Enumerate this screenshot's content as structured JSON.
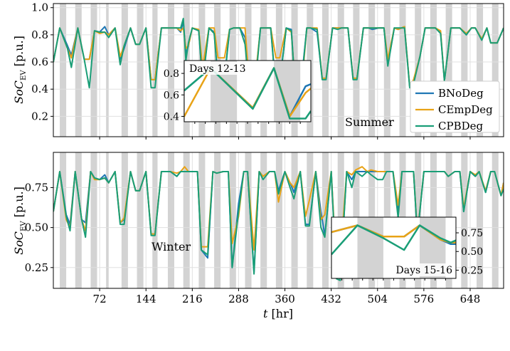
{
  "chart_data": [
    {
      "type": "line",
      "panel": "top",
      "annotation": "Summer",
      "ylabel": "SoC_EV [p.u.]",
      "ylabel_main": "SoC",
      "ylabel_sub": "EV",
      "ylabel_unit": " [p.u.]",
      "xlim": [
        0,
        700
      ],
      "ylim": [
        0.05,
        1.03
      ],
      "yticks": [
        0.2,
        0.4,
        0.6,
        0.8,
        1.0
      ],
      "ytick_labels": [
        "0.2",
        "0.4",
        "0.6",
        "0.8",
        "1.0"
      ],
      "grid": true,
      "legend_position": "lower-right",
      "series": [
        {
          "name": "BNoDeg",
          "color": "#1f77b4"
        },
        {
          "name": "CEmpDeg",
          "color": "#e8a317"
        },
        {
          "name": "CPBDeg",
          "color": "#1a9e77"
        }
      ],
      "profile": {
        "x": [
          0,
          10,
          22,
          28,
          38,
          48,
          56,
          64,
          72,
          80,
          86,
          96,
          104,
          110,
          120,
          128,
          134,
          144,
          152,
          158,
          168,
          176,
          182,
          192,
          198,
          202,
          206,
          210,
          216,
          226,
          232,
          242,
          250,
          256,
          266,
          274,
          280,
          290,
          298,
          304,
          314,
          322,
          328,
          338,
          346,
          352,
          362,
          370,
          376,
          386,
          394,
          400,
          410,
          418,
          424,
          434,
          442,
          448,
          458,
          466,
          472,
          482,
          490,
          496,
          506,
          514,
          520,
          530,
          536,
          546,
          554,
          560,
          570,
          578,
          584,
          594,
          602,
          608,
          618,
          626,
          632,
          642,
          650,
          656,
          666,
          674,
          680,
          690,
          700
        ],
        "BNoDeg": [
          0.6,
          0.85,
          0.72,
          0.65,
          0.85,
          0.62,
          0.62,
          0.83,
          0.82,
          0.86,
          0.8,
          0.85,
          0.62,
          0.7,
          0.85,
          0.73,
          0.73,
          0.85,
          0.47,
          0.47,
          0.85,
          0.85,
          0.85,
          0.85,
          0.82,
          0.9,
          0.66,
          0.72,
          0.85,
          0.83,
          0.46,
          0.85,
          0.82,
          0.47,
          0.48,
          0.84,
          0.85,
          0.85,
          0.78,
          0.45,
          0.46,
          0.85,
          0.85,
          0.85,
          0.4,
          0.45,
          0.85,
          0.84,
          0.4,
          0.48,
          0.85,
          0.85,
          0.82,
          0.48,
          0.48,
          0.85,
          0.85,
          0.85,
          0.85,
          0.48,
          0.48,
          0.85,
          0.85,
          0.84,
          0.85,
          0.85,
          0.58,
          0.85,
          0.84,
          0.86,
          0.42,
          0.45,
          0.64,
          0.85,
          0.85,
          0.85,
          0.82,
          0.46,
          0.85,
          0.85,
          0.85,
          0.8,
          0.85,
          0.85,
          0.77,
          0.85,
          0.74,
          0.74,
          0.85
        ],
        "CEmpDeg": [
          0.6,
          0.85,
          0.7,
          0.63,
          0.85,
          0.62,
          0.62,
          0.83,
          0.81,
          0.82,
          0.8,
          0.85,
          0.64,
          0.72,
          0.85,
          0.73,
          0.73,
          0.85,
          0.47,
          0.47,
          0.85,
          0.85,
          0.85,
          0.85,
          0.83,
          0.85,
          0.7,
          0.72,
          0.85,
          0.84,
          0.56,
          0.85,
          0.85,
          0.63,
          0.63,
          0.84,
          0.85,
          0.85,
          0.85,
          0.48,
          0.48,
          0.85,
          0.85,
          0.85,
          0.63,
          0.63,
          0.85,
          0.82,
          0.42,
          0.42,
          0.85,
          0.85,
          0.85,
          0.48,
          0.48,
          0.85,
          0.85,
          0.85,
          0.85,
          0.48,
          0.48,
          0.85,
          0.85,
          0.85,
          0.85,
          0.85,
          0.62,
          0.85,
          0.84,
          0.86,
          0.42,
          0.47,
          0.64,
          0.85,
          0.85,
          0.85,
          0.83,
          0.46,
          0.85,
          0.85,
          0.85,
          0.81,
          0.85,
          0.85,
          0.77,
          0.85,
          0.74,
          0.74,
          0.85
        ],
        "CPBDeg": [
          0.6,
          0.85,
          0.7,
          0.56,
          0.85,
          0.62,
          0.41,
          0.83,
          0.82,
          0.82,
          0.78,
          0.85,
          0.58,
          0.72,
          0.85,
          0.73,
          0.73,
          0.85,
          0.41,
          0.41,
          0.85,
          0.85,
          0.85,
          0.85,
          0.85,
          0.92,
          0.61,
          0.74,
          0.85,
          0.83,
          0.44,
          0.85,
          0.81,
          0.46,
          0.46,
          0.84,
          0.85,
          0.85,
          0.73,
          0.43,
          0.43,
          0.85,
          0.85,
          0.85,
          0.38,
          0.44,
          0.85,
          0.83,
          0.39,
          0.46,
          0.85,
          0.85,
          0.84,
          0.47,
          0.47,
          0.85,
          0.84,
          0.85,
          0.85,
          0.47,
          0.47,
          0.85,
          0.85,
          0.85,
          0.85,
          0.85,
          0.57,
          0.85,
          0.85,
          0.85,
          0.41,
          0.44,
          0.64,
          0.85,
          0.85,
          0.85,
          0.81,
          0.46,
          0.85,
          0.85,
          0.85,
          0.8,
          0.85,
          0.85,
          0.76,
          0.85,
          0.74,
          0.74,
          0.85
        ]
      },
      "night_bands": [
        [
          10,
          20
        ],
        [
          34,
          44
        ],
        [
          58,
          68
        ],
        [
          82,
          86
        ],
        [
          106,
          116
        ],
        [
          130,
          140
        ],
        [
          154,
          162
        ],
        [
          178,
          188
        ],
        [
          202,
          212
        ],
        [
          226,
          236
        ],
        [
          250,
          260
        ],
        [
          274,
          284
        ],
        [
          298,
          308
        ],
        [
          322,
          332
        ],
        [
          346,
          356
        ],
        [
          370,
          380
        ],
        [
          394,
          404
        ],
        [
          418,
          428
        ],
        [
          442,
          452
        ],
        [
          466,
          476
        ],
        [
          490,
          500
        ],
        [
          514,
          524
        ],
        [
          538,
          548
        ],
        [
          562,
          572
        ],
        [
          586,
          596
        ],
        [
          610,
          620
        ],
        [
          634,
          644
        ],
        [
          658,
          668
        ],
        [
          682,
          692
        ]
      ]
    },
    {
      "type": "line",
      "panel": "top-inset",
      "title": "Days 12-13",
      "xlim": [
        264,
        312
      ],
      "ylim": [
        0.35,
        0.92
      ],
      "yticks": [
        0.4,
        0.6,
        0.8
      ],
      "ytick_labels": [
        "0.4",
        "0.6",
        "0.8"
      ],
      "profile": {
        "x": [
          264,
          274,
          290,
          298,
          304,
          310,
          312
        ],
        "BNoDeg": [
          0.64,
          0.85,
          0.48,
          0.85,
          0.4,
          0.68,
          0.7
        ],
        "CEmpDeg": [
          0.4,
          0.85,
          0.48,
          0.85,
          0.4,
          0.62,
          0.66
        ],
        "CPBDeg": [
          0.64,
          0.85,
          0.47,
          0.85,
          0.38,
          0.38,
          0.45
        ]
      },
      "night_bands": [
        [
          274,
          284
        ],
        [
          298,
          308
        ]
      ]
    },
    {
      "type": "line",
      "panel": "bottom",
      "annotation": "Winter",
      "xlabel": "t [hr]",
      "xlabel_main": "t",
      "xlabel_unit": " [hr]",
      "ylabel": "SoC_EV [p.u.]",
      "ylabel_main": "SoC",
      "ylabel_sub": "EV",
      "ylabel_unit": " [p.u.]",
      "xlim": [
        0,
        700
      ],
      "ylim": [
        0.12,
        0.97
      ],
      "xticks": [
        72,
        144,
        216,
        288,
        360,
        432,
        504,
        576,
        648
      ],
      "xtick_labels": [
        "72",
        "144",
        "216",
        "288",
        "360",
        "432",
        "504",
        "576",
        "648"
      ],
      "yticks": [
        0.25,
        0.5,
        0.75
      ],
      "ytick_labels": [
        "0.25",
        "0.50",
        "0.75"
      ],
      "grid": true,
      "profile": {
        "x": [
          0,
          10,
          20,
          26,
          34,
          44,
          50,
          58,
          64,
          72,
          80,
          86,
          96,
          104,
          110,
          120,
          128,
          134,
          144,
          152,
          158,
          168,
          176,
          182,
          192,
          198,
          204,
          210,
          216,
          224,
          230,
          240,
          248,
          254,
          264,
          272,
          278,
          288,
          296,
          302,
          312,
          320,
          326,
          336,
          344,
          350,
          360,
          368,
          374,
          384,
          392,
          398,
          408,
          416,
          422,
          432,
          440,
          446,
          456,
          464,
          470,
          480,
          488,
          494,
          504,
          512,
          518,
          528,
          536,
          542,
          552,
          560,
          566,
          576,
          584,
          590,
          600,
          608,
          614,
          624,
          632,
          638,
          648,
          656,
          662,
          672,
          680,
          686,
          696,
          700
        ],
        "BNoDeg": [
          0.6,
          0.85,
          0.58,
          0.52,
          0.85,
          0.55,
          0.53,
          0.85,
          0.81,
          0.8,
          0.83,
          0.78,
          0.85,
          0.53,
          0.55,
          0.85,
          0.73,
          0.73,
          0.85,
          0.46,
          0.46,
          0.85,
          0.85,
          0.85,
          0.82,
          0.85,
          0.85,
          0.85,
          0.85,
          0.85,
          0.36,
          0.31,
          0.85,
          0.84,
          0.85,
          0.85,
          0.25,
          0.65,
          0.85,
          0.85,
          0.22,
          0.85,
          0.82,
          0.85,
          0.85,
          0.73,
          0.85,
          0.78,
          0.72,
          0.85,
          0.52,
          0.52,
          0.85,
          0.6,
          0.45,
          0.85,
          0.2,
          0.18,
          0.85,
          0.8,
          0.85,
          0.85,
          0.85,
          0.85,
          0.85,
          0.85,
          0.85,
          0.85,
          0.6,
          0.85,
          0.85,
          0.85,
          0.45,
          0.85,
          0.85,
          0.85,
          0.85,
          0.85,
          0.82,
          0.85,
          0.85,
          0.6,
          0.85,
          0.82,
          0.85,
          0.72,
          0.85,
          0.85,
          0.7,
          0.78
        ],
        "CEmpDeg": [
          0.6,
          0.85,
          0.55,
          0.5,
          0.85,
          0.55,
          0.48,
          0.85,
          0.8,
          0.8,
          0.81,
          0.78,
          0.85,
          0.53,
          0.56,
          0.85,
          0.73,
          0.73,
          0.85,
          0.46,
          0.46,
          0.85,
          0.85,
          0.85,
          0.84,
          0.85,
          0.88,
          0.85,
          0.85,
          0.85,
          0.38,
          0.38,
          0.85,
          0.84,
          0.85,
          0.85,
          0.4,
          0.57,
          0.85,
          0.85,
          0.36,
          0.85,
          0.82,
          0.85,
          0.85,
          0.66,
          0.85,
          0.78,
          0.75,
          0.85,
          0.57,
          0.67,
          0.85,
          0.55,
          0.58,
          0.85,
          0.25,
          0.3,
          0.85,
          0.83,
          0.86,
          0.88,
          0.85,
          0.86,
          0.85,
          0.85,
          0.85,
          0.85,
          0.64,
          0.85,
          0.85,
          0.85,
          0.46,
          0.85,
          0.85,
          0.85,
          0.85,
          0.85,
          0.82,
          0.85,
          0.85,
          0.62,
          0.85,
          0.83,
          0.85,
          0.73,
          0.85,
          0.85,
          0.7,
          0.78
        ],
        "CPBDeg": [
          0.6,
          0.85,
          0.57,
          0.48,
          0.85,
          0.55,
          0.44,
          0.85,
          0.81,
          0.8,
          0.81,
          0.78,
          0.85,
          0.52,
          0.52,
          0.85,
          0.73,
          0.73,
          0.85,
          0.45,
          0.45,
          0.85,
          0.85,
          0.85,
          0.82,
          0.85,
          0.85,
          0.85,
          0.85,
          0.85,
          0.36,
          0.33,
          0.85,
          0.84,
          0.85,
          0.85,
          0.25,
          0.6,
          0.85,
          0.85,
          0.21,
          0.85,
          0.8,
          0.85,
          0.85,
          0.71,
          0.85,
          0.75,
          0.68,
          0.85,
          0.51,
          0.51,
          0.85,
          0.5,
          0.44,
          0.85,
          0.18,
          0.17,
          0.85,
          0.75,
          0.85,
          0.82,
          0.85,
          0.83,
          0.8,
          0.8,
          0.85,
          0.85,
          0.56,
          0.85,
          0.85,
          0.85,
          0.45,
          0.85,
          0.85,
          0.85,
          0.85,
          0.85,
          0.82,
          0.85,
          0.85,
          0.6,
          0.85,
          0.82,
          0.85,
          0.72,
          0.85,
          0.85,
          0.7,
          0.74
        ]
      },
      "night_bands": [
        [
          10,
          20
        ],
        [
          34,
          44
        ],
        [
          58,
          68
        ],
        [
          82,
          86
        ],
        [
          106,
          116
        ],
        [
          130,
          140
        ],
        [
          154,
          162
        ],
        [
          178,
          188
        ],
        [
          202,
          212
        ],
        [
          226,
          236
        ],
        [
          250,
          260
        ],
        [
          274,
          284
        ],
        [
          298,
          308
        ],
        [
          322,
          332
        ],
        [
          346,
          356
        ],
        [
          370,
          380
        ],
        [
          394,
          404
        ],
        [
          418,
          428
        ],
        [
          442,
          452
        ],
        [
          466,
          476
        ],
        [
          490,
          500
        ],
        [
          514,
          524
        ],
        [
          538,
          548
        ],
        [
          562,
          572
        ],
        [
          586,
          596
        ],
        [
          610,
          620
        ],
        [
          634,
          644
        ],
        [
          658,
          668
        ],
        [
          682,
          692
        ]
      ]
    },
    {
      "type": "line",
      "panel": "bottom-inset",
      "title": "Days 15-16",
      "xlim": [
        336,
        384
      ],
      "ylim": [
        0.14,
        0.96
      ],
      "yticks": [
        0.25,
        0.5,
        0.75
      ],
      "ytick_labels": [
        "0.25",
        "0.50",
        "0.75"
      ],
      "profile": {
        "x": [
          336,
          346,
          356,
          364,
          370,
          378,
          382,
          384
        ],
        "BNoDeg": [
          0.76,
          0.85,
          0.7,
          0.7,
          0.85,
          0.66,
          0.6,
          0.6
        ],
        "CEmpDeg": [
          0.76,
          0.85,
          0.7,
          0.7,
          0.85,
          0.66,
          0.62,
          0.62
        ],
        "CPBDeg": [
          0.46,
          0.85,
          0.68,
          0.52,
          0.85,
          0.68,
          0.62,
          0.65
        ]
      },
      "night_bands": [
        [
          346,
          356
        ],
        [
          370,
          380
        ]
      ]
    }
  ]
}
